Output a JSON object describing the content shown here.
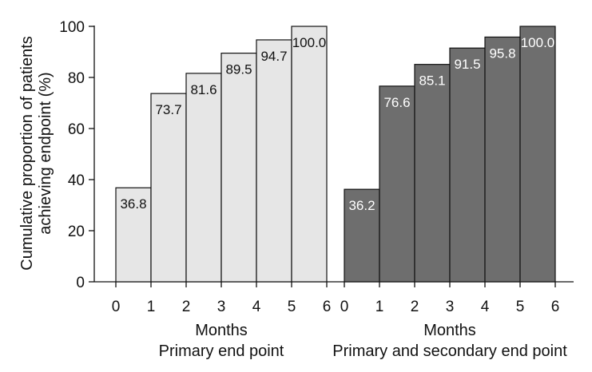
{
  "chart_data": {
    "type": "bar",
    "ylabel_lines": [
      "Cumulative proportion of patients",
      "achieving endpoint (%)"
    ],
    "ylim": [
      0,
      100
    ],
    "yticks": [
      0,
      20,
      40,
      60,
      80,
      100
    ],
    "grid": false,
    "legend": "none",
    "panels": [
      {
        "xlabel": "Months",
        "subtitle": "Primary end point",
        "x_ticks": [
          "0",
          "1",
          "2",
          "3",
          "4",
          "5",
          "6"
        ],
        "bins": [
          [
            0,
            1
          ],
          [
            1,
            2
          ],
          [
            2,
            3
          ],
          [
            3,
            4
          ],
          [
            4,
            5
          ],
          [
            5,
            6
          ]
        ],
        "values": [
          36.8,
          73.7,
          81.6,
          89.5,
          94.7,
          100.0
        ],
        "value_labels": [
          "36.8",
          "73.7",
          "81.6",
          "89.5",
          "94.7",
          "100.0"
        ],
        "bar_color": "#e6e6e6",
        "label_color": "#111111"
      },
      {
        "xlabel": "Months",
        "subtitle": "Primary and secondary end point",
        "x_ticks": [
          "0",
          "1",
          "2",
          "3",
          "4",
          "5",
          "6"
        ],
        "bins": [
          [
            0,
            1
          ],
          [
            1,
            2
          ],
          [
            2,
            3
          ],
          [
            3,
            4
          ],
          [
            4,
            5
          ],
          [
            5,
            6
          ]
        ],
        "values": [
          36.2,
          76.6,
          85.1,
          91.5,
          95.8,
          100.0
        ],
        "value_labels": [
          "36.2",
          "76.6",
          "85.1",
          "91.5",
          "95.8",
          "100.0"
        ],
        "bar_color": "#6e6e6e",
        "label_color": "#ffffff"
      }
    ]
  }
}
